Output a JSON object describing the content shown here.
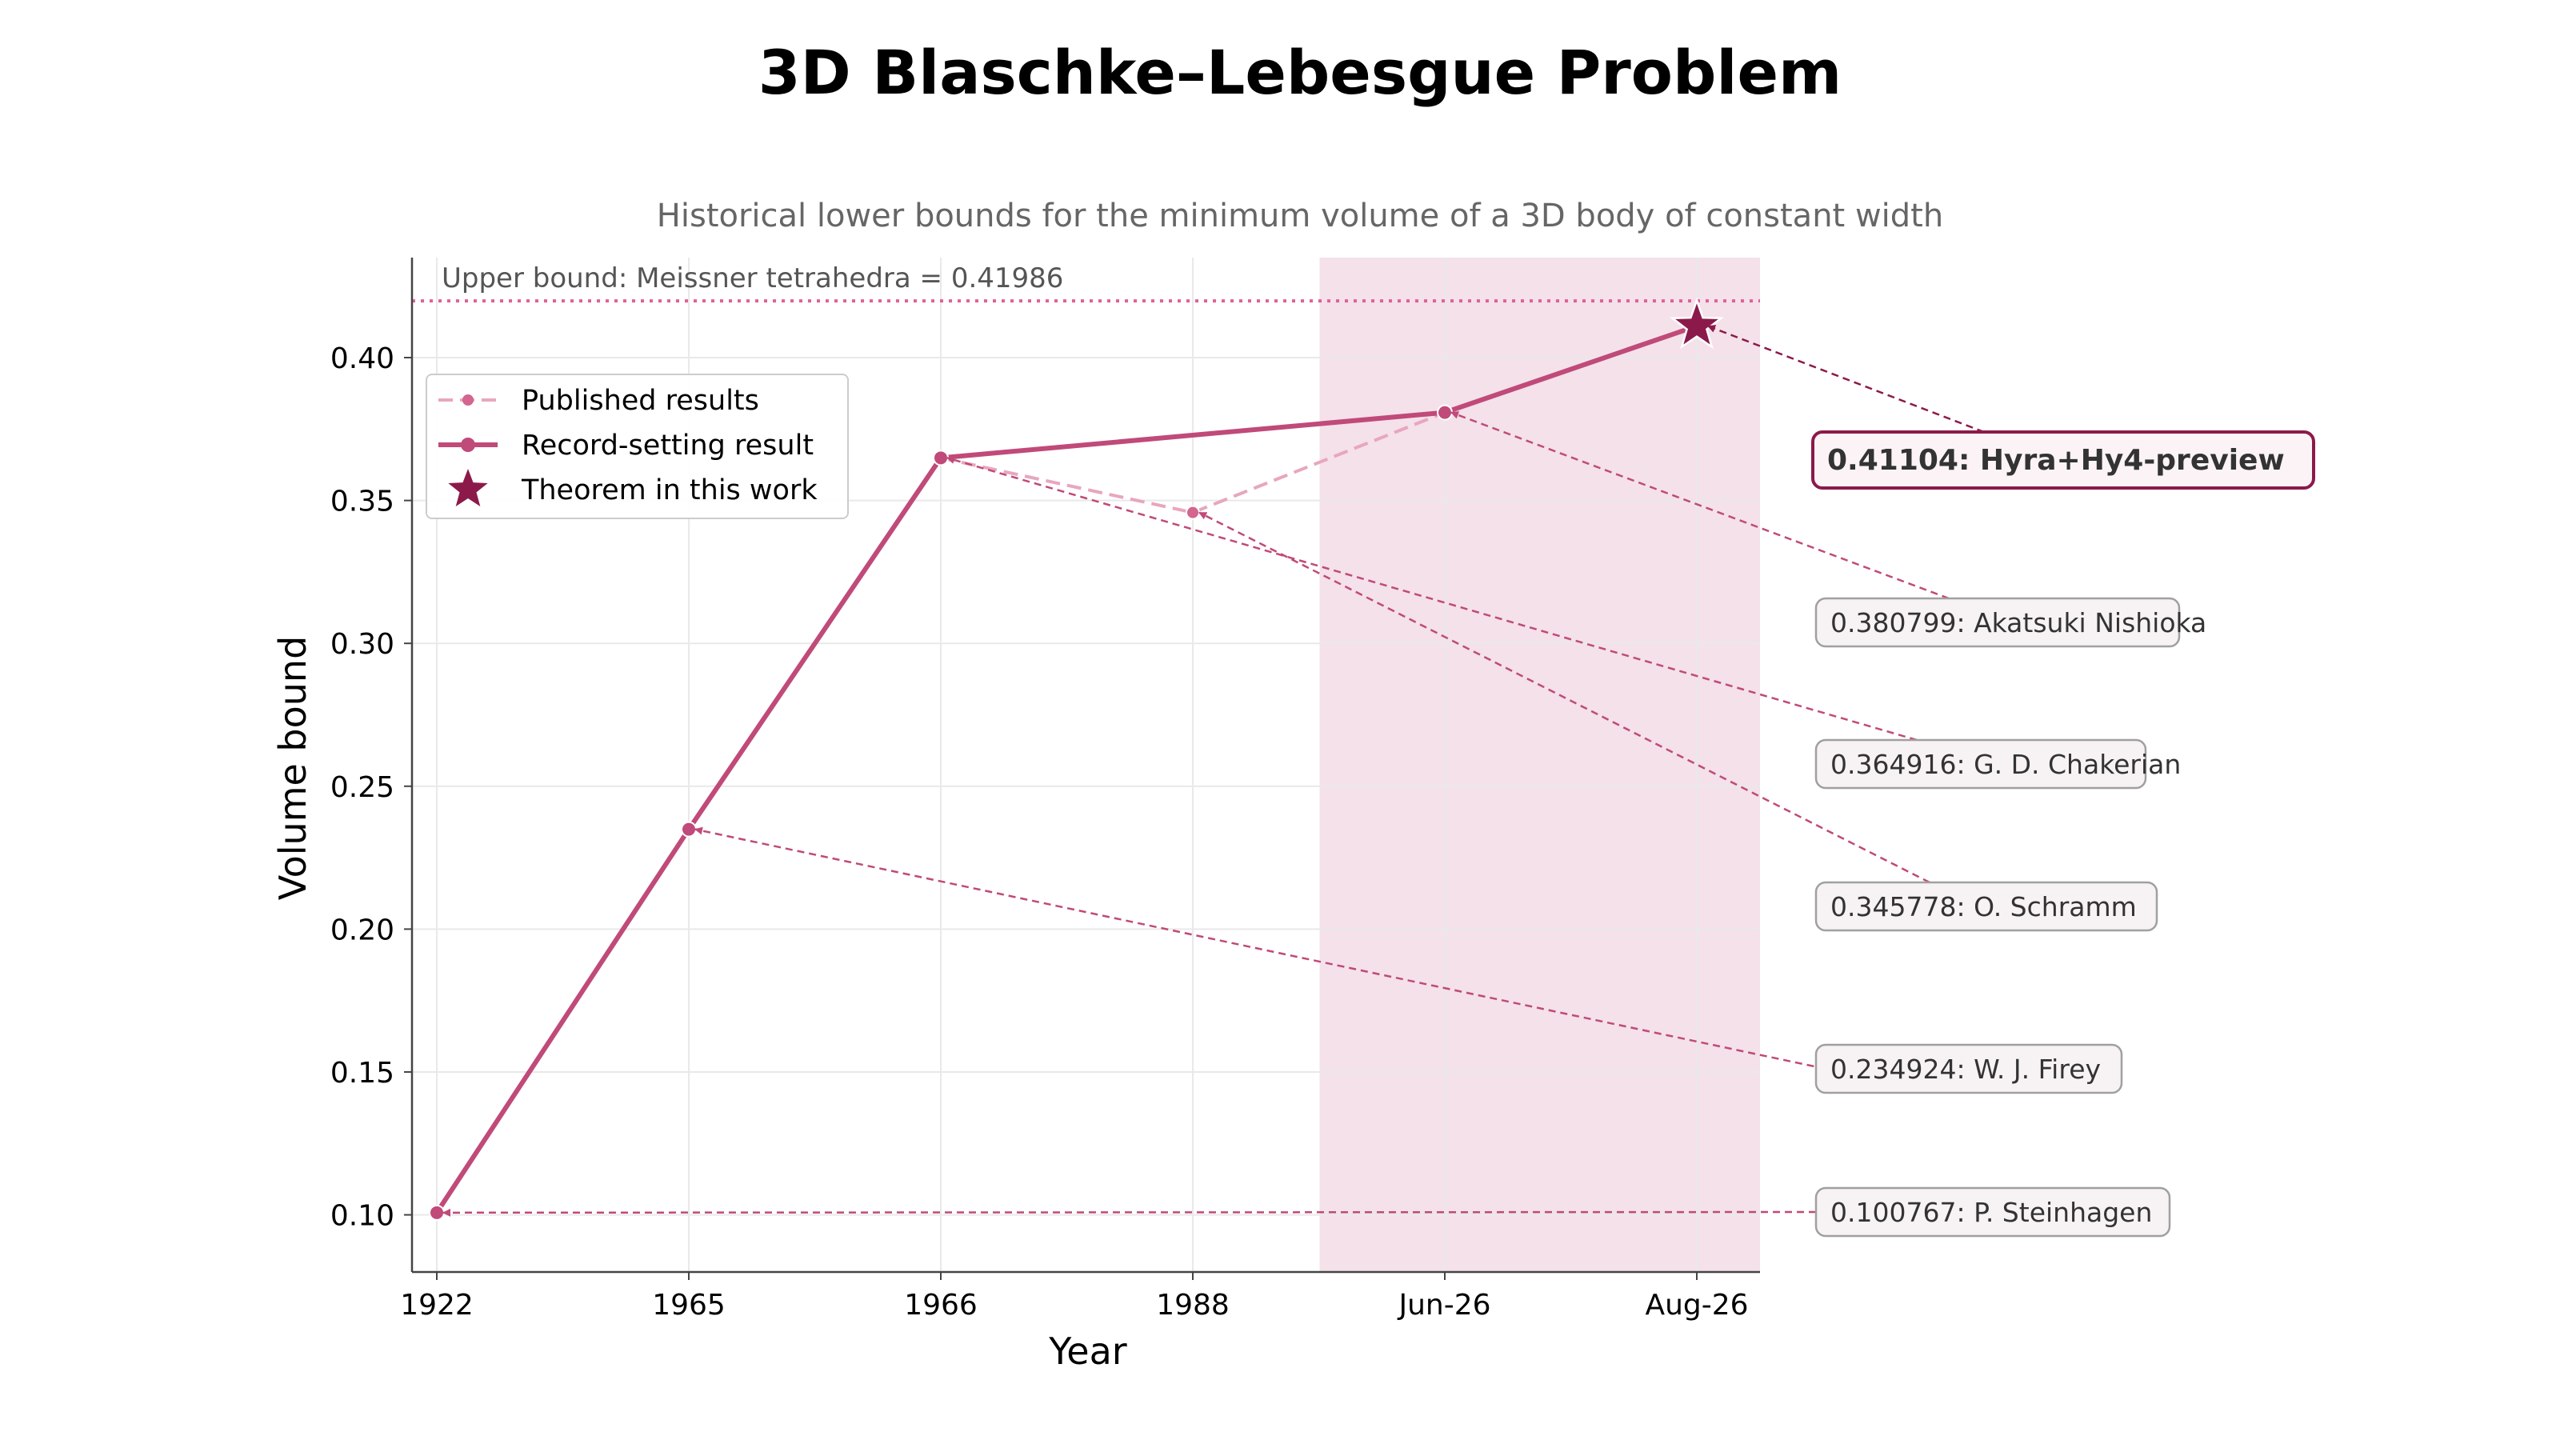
{
  "chart_data": {
    "type": "line",
    "title": "3D Blaschke–Lebesgue Problem",
    "subtitle": "Historical lower bounds for the minimum volume of a 3D body of constant width",
    "xlabel": "Year",
    "ylabel": "Volume bound",
    "categories": [
      "1922",
      "1965",
      "1966",
      "1988",
      "Jun-26",
      "Aug-26"
    ],
    "ylim": [
      0.08,
      0.435
    ],
    "yticks": [
      "0.10",
      "0.15",
      "0.20",
      "0.25",
      "0.30",
      "0.35",
      "0.40"
    ],
    "grid": true,
    "legend_position": "upper-left",
    "upper_bound": {
      "label": "Upper bound: Meissner tetrahedra = 0.41986",
      "value": 0.41986
    },
    "highlight_region": {
      "from": "between 1988 and Jun-26",
      "to": "right edge"
    },
    "series": [
      {
        "name": "Published results",
        "style": "dashed",
        "color": "#e8a6bf",
        "x": [
          "1922",
          "1965",
          "1966",
          "1988",
          "Jun-26"
        ],
        "values": [
          0.100767,
          0.234924,
          0.364916,
          0.345778,
          0.380799
        ]
      },
      {
        "name": "Record-setting result",
        "style": "solid",
        "color": "#c04a79",
        "x": [
          "1922",
          "1965",
          "1966",
          "Jun-26",
          "Aug-26"
        ],
        "values": [
          0.100767,
          0.234924,
          0.364916,
          0.380799,
          0.41104
        ]
      },
      {
        "name": "Theorem in this work",
        "style": "star",
        "color": "#8b1a4a",
        "x": [
          "Aug-26"
        ],
        "values": [
          0.41104
        ]
      }
    ],
    "annotations": [
      {
        "text": "0.41104: Hyra+Hy4-preview",
        "x": "Aug-26",
        "value": 0.41104,
        "highlight": true
      },
      {
        "text": "0.380799: Akatsuki Nishioka",
        "x": "Jun-26",
        "value": 0.380799
      },
      {
        "text": "0.364916: G. D. Chakerian",
        "x": "1966",
        "value": 0.364916
      },
      {
        "text": "0.345778: O. Schramm",
        "x": "1988",
        "value": 0.345778
      },
      {
        "text": "0.234924: W. J. Firey",
        "x": "1965",
        "value": 0.234924
      },
      {
        "text": "0.100767: P. Steinhagen",
        "x": "1922",
        "value": 0.100767
      }
    ],
    "colors": {
      "record": "#c04a79",
      "published": "#e8a6bf",
      "star": "#8b1a4a",
      "upper_bound": "#e0609a",
      "shade": "#f4e1ea",
      "arrow": "#c04a79"
    }
  }
}
